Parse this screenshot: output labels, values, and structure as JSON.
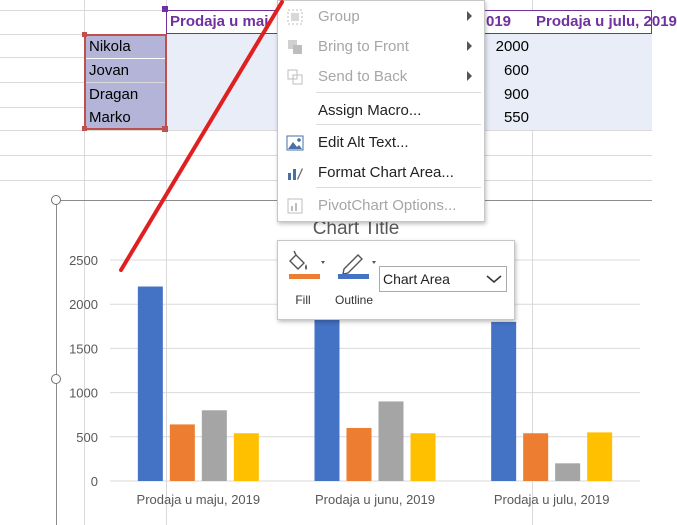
{
  "sheet": {
    "names": [
      "Nikola",
      "Jovan",
      "Dragan",
      "Marko"
    ],
    "header_cells": [
      "Prodaja u maj",
      "019",
      "Prodaja u julu, 2019"
    ],
    "visible_numbers": [
      "2000",
      "600",
      "900",
      "550"
    ],
    "name_fill": "#b4b4d8",
    "range_border": "#c0504d",
    "header_color": "#7030a0"
  },
  "context_menu": {
    "items": [
      {
        "label": "Group",
        "enabled": false,
        "submenu": true,
        "icon": "group-icon"
      },
      {
        "label": "Bring to Front",
        "enabled": false,
        "submenu": true,
        "icon": "bring-to-front-icon"
      },
      {
        "label": "Send to Back",
        "enabled": false,
        "submenu": true,
        "icon": "send-to-back-icon"
      },
      {
        "label": "Assign Macro...",
        "enabled": true,
        "submenu": false,
        "icon": ""
      },
      {
        "label": "Edit Alt Text...",
        "enabled": true,
        "submenu": false,
        "icon": "alt-text-icon"
      },
      {
        "label": "Format Chart Area...",
        "enabled": true,
        "submenu": false,
        "icon": "format-chart-area-icon"
      },
      {
        "label": "PivotChart Options...",
        "enabled": false,
        "submenu": false,
        "icon": "pivotchart-icon"
      }
    ]
  },
  "mini_toolbar": {
    "fill_label": "Fill",
    "outline_label": "Outline",
    "dropdown_value": "Chart Area",
    "fill_color": "#ed7d31",
    "outline_color": "#4472c4"
  },
  "chart_data": {
    "type": "bar",
    "title": "Chart Title",
    "categories": [
      "Prodaja u maju, 2019",
      "Prodaja u junu, 2019",
      "Prodaja u julu, 2019"
    ],
    "series": [
      {
        "values": [
          2200,
          2000,
          1800
        ],
        "color": "#4472c4"
      },
      {
        "values": [
          640,
          600,
          540
        ],
        "color": "#ed7d31"
      },
      {
        "values": [
          800,
          900,
          200
        ],
        "color": "#a5a5a5"
      },
      {
        "values": [
          540,
          540,
          550
        ],
        "color": "#ffc000"
      }
    ],
    "ylim": [
      0,
      2500
    ],
    "yticks": [
      "0",
      "500",
      "1000",
      "1500",
      "2000",
      "2500"
    ],
    "grid": true
  },
  "annotation": {
    "arrow_color": "#e02020"
  }
}
